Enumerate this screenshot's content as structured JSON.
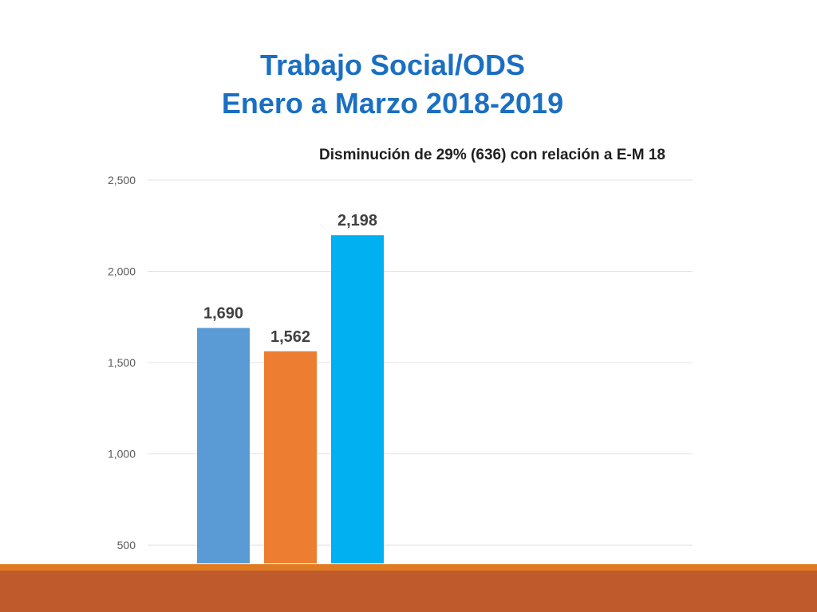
{
  "slide": {
    "title_line1": "Trabajo Social/ODS",
    "title_line2": "Enero a Marzo 2018-2019",
    "subtitle": "Disminución de 29% (636)  con relación a E-M 18"
  },
  "colors": {
    "title": "#1a6fc2",
    "footer_line": "#e07b22",
    "footer_band": "#bf5a2d"
  },
  "chart_data": {
    "type": "bar",
    "categories": [
      "",
      "",
      ""
    ],
    "values": [
      1690,
      1562,
      2198
    ],
    "data_labels": [
      "1,690",
      "1,562",
      "2,198"
    ],
    "bar_colors": [
      "#5b9bd5",
      "#ed7d31",
      "#00b0f0"
    ],
    "ylim": [
      400,
      2500
    ],
    "yticks": [
      500,
      1000,
      1500,
      2000,
      2500
    ],
    "ytick_labels": [
      "500",
      "1,000",
      "1,500",
      "2,000",
      "2,500"
    ],
    "grid": true
  }
}
